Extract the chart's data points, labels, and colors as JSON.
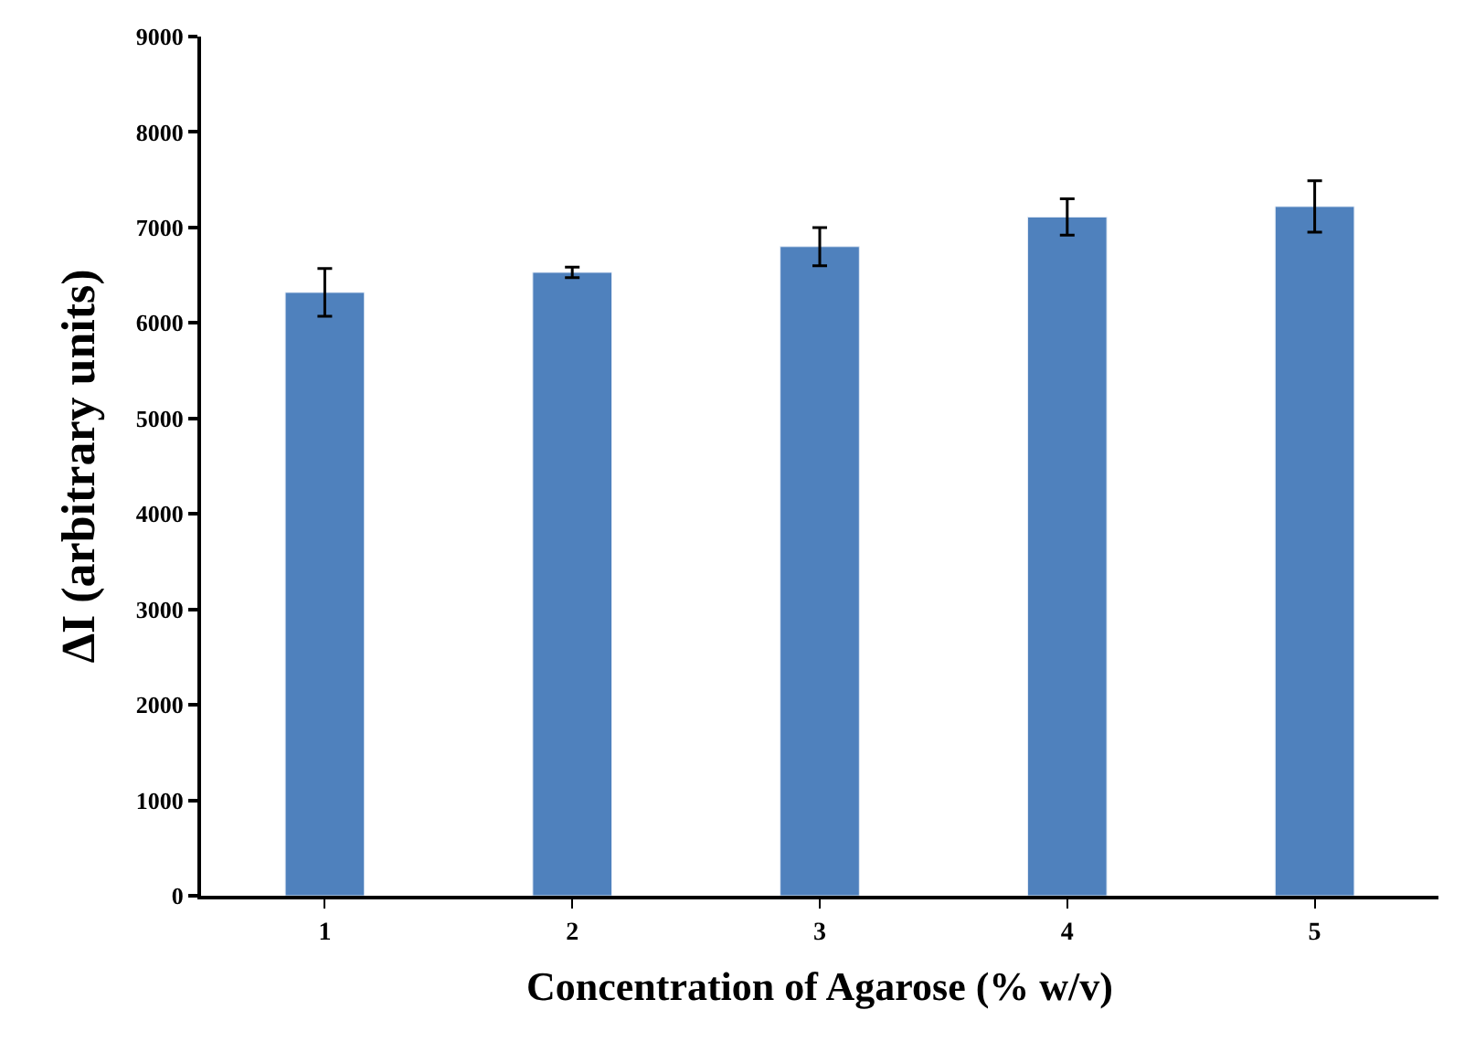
{
  "chart_data": {
    "type": "bar",
    "xlabel": "Concentration of Agarose (% w/v)",
    "ylabel": "ΔI (arbitrary units)",
    "categories": [
      "1",
      "2",
      "3",
      "4",
      "5"
    ],
    "values": [
      6320,
      6530,
      6800,
      7110,
      7220
    ],
    "errors": [
      250,
      55,
      200,
      190,
      270
    ],
    "color": "#4f81bd",
    "ylim": [
      0,
      9000
    ],
    "yticks": [
      0,
      1000,
      2000,
      3000,
      4000,
      5000,
      6000,
      7000,
      8000,
      9000
    ]
  }
}
